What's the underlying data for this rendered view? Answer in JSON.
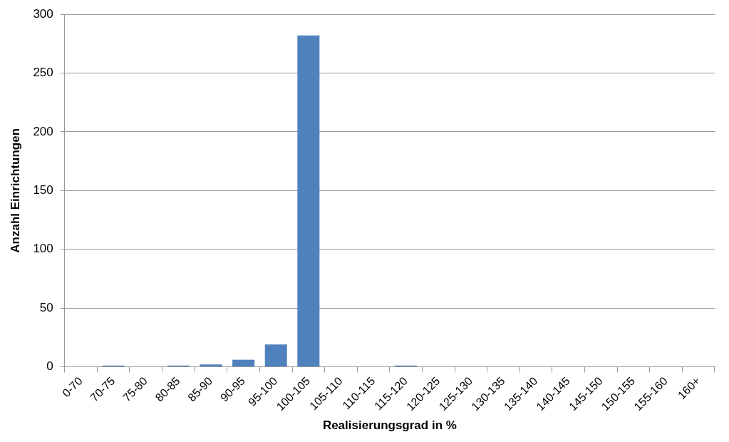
{
  "chart_data": {
    "type": "bar",
    "xlabel": "Realisierungsgrad in %",
    "ylabel": "Anzahl Einrichtungen",
    "categories": [
      "0-70",
      "70-75",
      "75-80",
      "80-85",
      "85-90",
      "90-95",
      "95-100",
      "100-105",
      "105-110",
      "110-115",
      "115-120",
      "120-125",
      "125-130",
      "130-135",
      "135-140",
      "140-145",
      "145-150",
      "150-155",
      "155-160",
      "160+"
    ],
    "values": [
      0,
      1,
      0,
      1,
      2,
      6,
      19,
      282,
      0,
      0,
      1,
      0,
      0,
      0,
      0,
      0,
      0,
      0,
      0,
      0
    ],
    "color": "#4f81bd",
    "ylim": [
      0,
      300
    ],
    "yticks": [
      0,
      50,
      100,
      150,
      200,
      250,
      300
    ],
    "grid": "y",
    "legend": false
  }
}
